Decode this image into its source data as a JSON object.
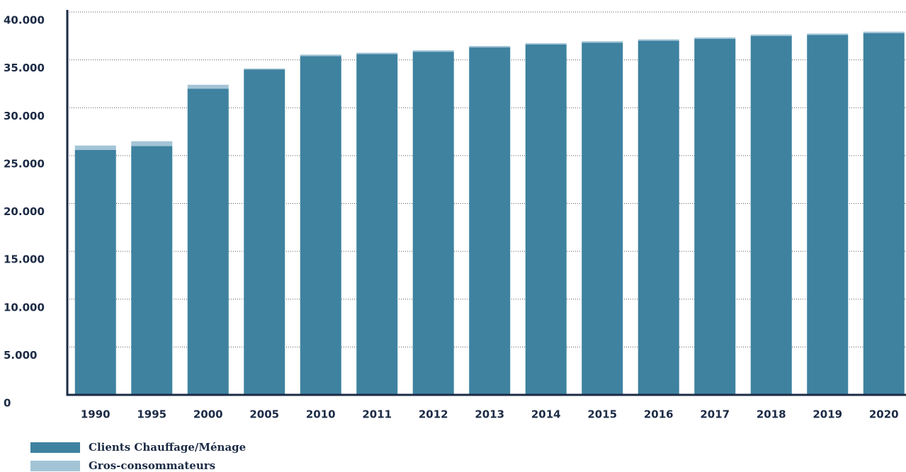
{
  "chart_data": {
    "type": "stacked_bar",
    "categories": [
      "1990",
      "1995",
      "2000",
      "2005",
      "2010",
      "2011",
      "2012",
      "2013",
      "2014",
      "2015",
      "2016",
      "2017",
      "2018",
      "2019",
      "2020"
    ],
    "series": [
      {
        "name": "Clients Chauffage/Ménage",
        "color": "#3e82a0",
        "values": [
          25600,
          26000,
          32000,
          34000,
          35400,
          35600,
          35850,
          36300,
          36600,
          36800,
          37000,
          37200,
          37500,
          37600,
          37800
        ]
      },
      {
        "name": "Gros-consommateurs",
        "color": "#a3c4d6",
        "values": [
          450,
          500,
          400,
          100,
          150,
          150,
          150,
          150,
          150,
          150,
          150,
          150,
          150,
          150,
          150
        ]
      }
    ],
    "ylim": [
      0,
      40000
    ],
    "yticks": [
      0,
      {
        "value": 5000,
        "label": "5.000"
      },
      {
        "value": 10000,
        "label": "10.000"
      },
      {
        "value": 15000,
        "label": "15.000"
      },
      {
        "value": 20000,
        "label": "20.000"
      },
      {
        "value": 25000,
        "label": "25.000"
      },
      {
        "value": 30000,
        "label": "30.000"
      },
      {
        "value": 35000,
        "label": "35.000"
      },
      {
        "value": 40000,
        "label": "40.000"
      }
    ],
    "grid": true
  }
}
